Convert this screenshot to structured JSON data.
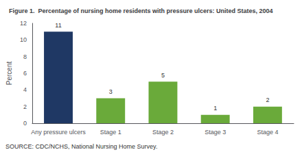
{
  "chart_data": {
    "type": "bar",
    "title": "Figure 1.  Percentage of nursing home residents with pressure ulcers: United States, 2004",
    "categories": [
      "Any pressure ulcers",
      "Stage 1",
      "Stage 2",
      "Stage 3",
      "Stage 4"
    ],
    "values": [
      11,
      3,
      5,
      1,
      2
    ],
    "colors": [
      "#1f3864",
      "#6aaa3a",
      "#6aaa3a",
      "#6aaa3a",
      "#6aaa3a"
    ],
    "y_label": "Percent",
    "ylim": [
      0,
      12
    ],
    "yticks": [
      0,
      2,
      4,
      6,
      8,
      10,
      12
    ],
    "grid": false,
    "data_labels": true,
    "annotations": [
      "SOURCE: CDC/NCHS, National Nursing Home Survey."
    ]
  }
}
